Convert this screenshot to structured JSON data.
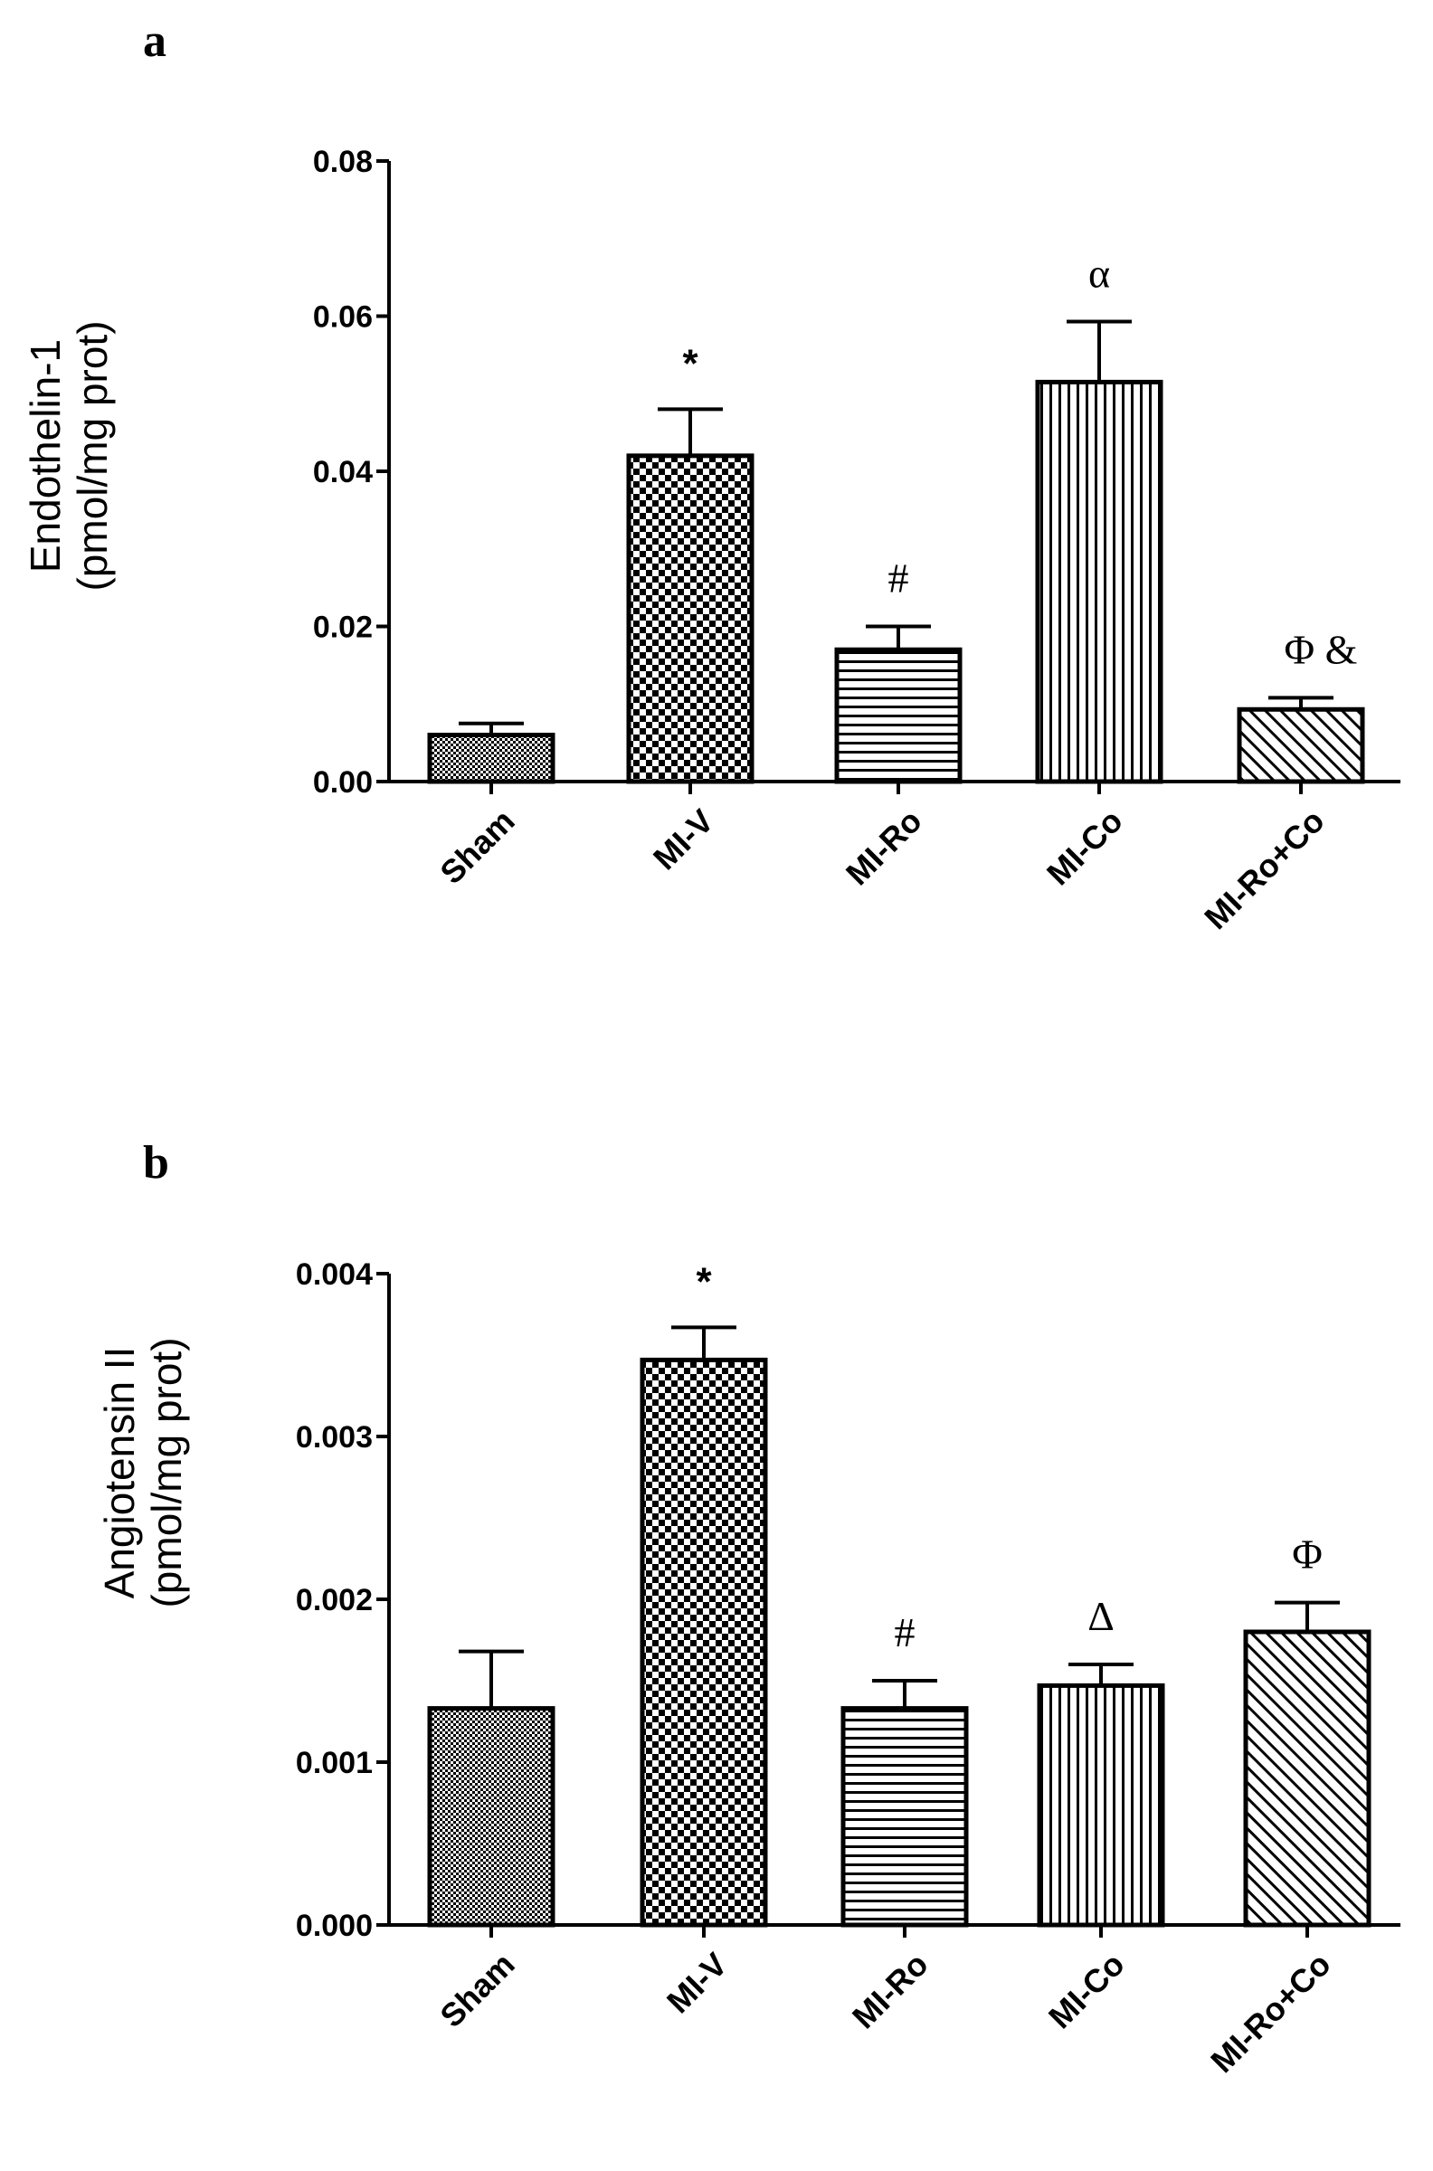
{
  "chart_data": [
    {
      "panel": "a",
      "type": "bar",
      "ylabel": "Endothelin-1",
      "ylabel_unit": "(pmol/mg prot)",
      "ylim": [
        0,
        0.08
      ],
      "yticks": [
        0.0,
        0.02,
        0.04,
        0.06,
        0.08
      ],
      "ytick_labels": [
        "0.00",
        "0.02",
        "0.04",
        "0.06",
        "0.08"
      ],
      "categories": [
        "Sham",
        "MI-V",
        "MI-Ro",
        "MI-Co",
        "MI-Ro+Co"
      ],
      "values": [
        0.006,
        0.042,
        0.017,
        0.0515,
        0.0093
      ],
      "errors": [
        0.0015,
        0.006,
        0.003,
        0.0078,
        0.0015
      ],
      "annotations": [
        "",
        "*",
        "#",
        "α",
        "Φ  &"
      ],
      "patterns": [
        "fine-check",
        "checker",
        "horizontal",
        "vertical",
        "diagonal"
      ]
    },
    {
      "panel": "b",
      "type": "bar",
      "ylabel": "Angiotensin II",
      "ylabel_unit": "(pmol/mg prot)",
      "ylim": [
        0,
        0.004
      ],
      "yticks": [
        0.0,
        0.001,
        0.002,
        0.003,
        0.004
      ],
      "ytick_labels": [
        "0.000",
        "0.001",
        "0.002",
        "0.003",
        "0.004"
      ],
      "categories": [
        "Sham",
        "MI-V",
        "MI-Ro",
        "MI-Co",
        "MI-Ro+Co"
      ],
      "values": [
        0.00133,
        0.00347,
        0.00133,
        0.00147,
        0.0018
      ],
      "errors": [
        0.00035,
        0.0002,
        0.00017,
        0.00013,
        0.00018
      ],
      "annotations": [
        "",
        "*",
        "#",
        "Δ",
        "Φ"
      ],
      "patterns": [
        "fine-check",
        "checker",
        "horizontal",
        "vertical",
        "diagonal"
      ]
    }
  ]
}
